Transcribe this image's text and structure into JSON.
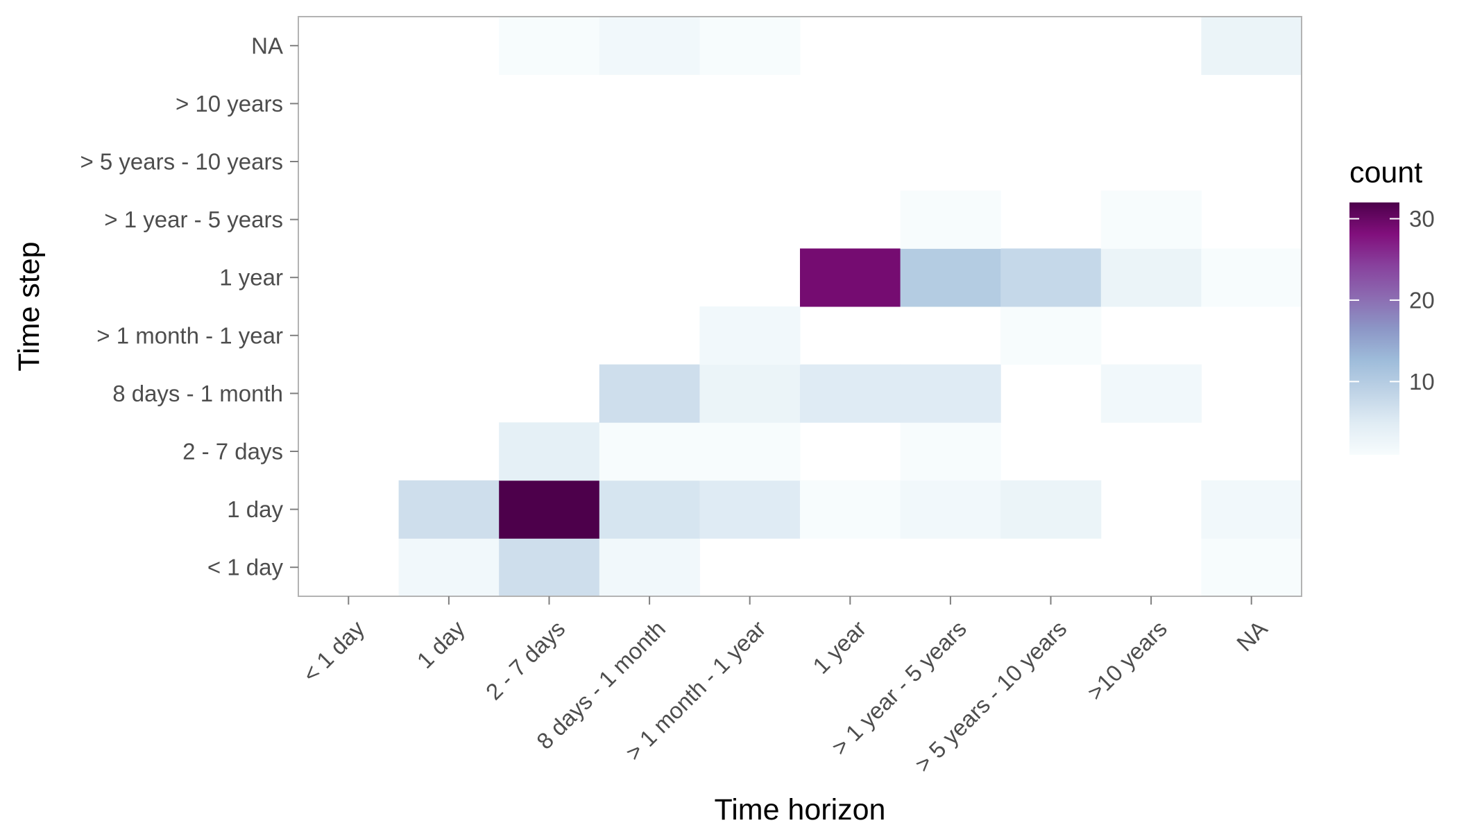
{
  "chart_data": {
    "type": "heatmap",
    "xlabel": "Time horizon",
    "ylabel": "Time step",
    "x_categories": [
      "< 1 day",
      "1 day",
      "2 - 7 days",
      "8 days - 1 month",
      "> 1 month - 1 year",
      "1 year",
      "> 1 year - 5 years",
      "> 5 years - 10 years",
      ">10 years",
      "NA"
    ],
    "y_categories": [
      "< 1 day",
      "1 day",
      "2 - 7 days",
      "8 days - 1 month",
      "> 1 month - 1 year",
      "1 year",
      "> 1 year - 5 years",
      "> 5 years - 10 years",
      "> 10 years",
      "NA"
    ],
    "cells": [
      {
        "x": "1 day",
        "y": "< 1 day",
        "value": 2
      },
      {
        "x": "2 - 7 days",
        "y": "< 1 day",
        "value": 7
      },
      {
        "x": "8 days - 1 month",
        "y": "< 1 day",
        "value": 2
      },
      {
        "x": "NA",
        "y": "< 1 day",
        "value": 1
      },
      {
        "x": "1 day",
        "y": "1 day",
        "value": 7
      },
      {
        "x": "2 - 7 days",
        "y": "1 day",
        "value": 32
      },
      {
        "x": "8 days - 1 month",
        "y": "1 day",
        "value": 6
      },
      {
        "x": "> 1 month - 1 year",
        "y": "1 day",
        "value": 5
      },
      {
        "x": "1 year",
        "y": "1 day",
        "value": 1
      },
      {
        "x": "> 1 year - 5 years",
        "y": "1 day",
        "value": 2
      },
      {
        "x": "> 5 years - 10 years",
        "y": "1 day",
        "value": 3
      },
      {
        "x": "NA",
        "y": "1 day",
        "value": 2
      },
      {
        "x": "2 - 7 days",
        "y": "2 - 7 days",
        "value": 4
      },
      {
        "x": "8 days - 1 month",
        "y": "2 - 7 days",
        "value": 1
      },
      {
        "x": "> 1 month - 1 year",
        "y": "2 - 7 days",
        "value": 1
      },
      {
        "x": "> 1 year - 5 years",
        "y": "2 - 7 days",
        "value": 1
      },
      {
        "x": "8 days - 1 month",
        "y": "8 days - 1 month",
        "value": 7
      },
      {
        "x": "> 1 month - 1 year",
        "y": "8 days - 1 month",
        "value": 3
      },
      {
        "x": "1 year",
        "y": "8 days - 1 month",
        "value": 5
      },
      {
        "x": "> 1 year - 5 years",
        "y": "8 days - 1 month",
        "value": 5
      },
      {
        "x": ">10 years",
        "y": "8 days - 1 month",
        "value": 2
      },
      {
        "x": "> 1 month - 1 year",
        "y": "> 1 month - 1 year",
        "value": 2
      },
      {
        "x": "> 5 years - 10 years",
        "y": "> 1 month - 1 year",
        "value": 1
      },
      {
        "x": "1 year",
        "y": "1 year",
        "value": 29
      },
      {
        "x": "> 1 year - 5 years",
        "y": "1 year",
        "value": 10
      },
      {
        "x": "> 5 years - 10 years",
        "y": "1 year",
        "value": 8
      },
      {
        "x": ">10 years",
        "y": "1 year",
        "value": 3
      },
      {
        "x": "NA",
        "y": "1 year",
        "value": 1
      },
      {
        "x": "> 1 year - 5 years",
        "y": "> 1 year - 5 years",
        "value": 1
      },
      {
        "x": ">10 years",
        "y": "> 1 year - 5 years",
        "value": 1
      },
      {
        "x": "2 - 7 days",
        "y": "NA",
        "value": 1
      },
      {
        "x": "8 days - 1 month",
        "y": "NA",
        "value": 2
      },
      {
        "x": "> 1 month - 1 year",
        "y": "NA",
        "value": 1
      },
      {
        "x": "NA",
        "y": "NA",
        "value": 3
      }
    ],
    "legend": {
      "title": "count",
      "position": "right",
      "ticks": [
        10,
        20,
        30
      ],
      "range": [
        1,
        32
      ],
      "colors": [
        "#f7fcfd",
        "#e0ecf4",
        "#bfd3e6",
        "#9ebcda",
        "#8c96c6",
        "#8c6bb1",
        "#88419d",
        "#810f7c",
        "#4d004b"
      ]
    },
    "grid": false,
    "panel_border_color": "#b3b3b3"
  }
}
